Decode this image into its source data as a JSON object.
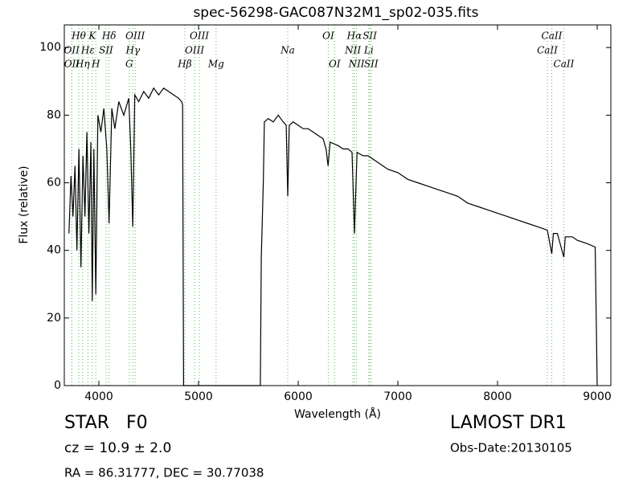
{
  "chart_data": {
    "type": "line",
    "title": "spec-56298-GAC087N32M1_sp02-035.fits",
    "x_label": "Wavelength (Å)",
    "y_label": "Flux (relative)",
    "xlim": [
      3653,
      9137
    ],
    "ylim": [
      0,
      106.7
    ],
    "xticks": [
      4000,
      5000,
      6000,
      7000,
      8000,
      9000
    ],
    "yticks": [
      0,
      20,
      40,
      60,
      80,
      100
    ],
    "color": "#000000",
    "line_color": "#5cb85c",
    "x": [
      3700,
      3720,
      3740,
      3760,
      3780,
      3800,
      3820,
      3840,
      3860,
      3880,
      3900,
      3920,
      3934,
      3950,
      3969,
      3990,
      4020,
      4050,
      4080,
      4102,
      4130,
      4160,
      4200,
      4250,
      4300,
      4320,
      4340,
      4360,
      4400,
      4450,
      4500,
      4550,
      4600,
      4650,
      4700,
      4750,
      4800,
      4830,
      4840,
      4850,
      5620,
      5630,
      5650,
      5660,
      5700,
      5750,
      5800,
      5850,
      5880,
      5895,
      5910,
      5950,
      6000,
      6050,
      6100,
      6150,
      6200,
      6250,
      6280,
      6300,
      6320,
      6400,
      6450,
      6500,
      6540,
      6564,
      6590,
      6650,
      6700,
      6800,
      6900,
      7000,
      7100,
      7200,
      7300,
      7400,
      7500,
      7600,
      7700,
      7800,
      7900,
      8000,
      8100,
      8200,
      8300,
      8400,
      8500,
      8544,
      8560,
      8600,
      8665,
      8680,
      8750,
      8800,
      8900,
      8980,
      8990,
      9000
    ],
    "values": [
      45,
      62,
      50,
      65,
      40,
      70,
      35,
      68,
      50,
      75,
      45,
      72,
      25,
      70,
      27,
      80,
      75,
      82,
      70,
      48,
      82,
      76,
      84,
      80,
      85,
      70,
      47,
      86,
      84,
      87,
      85,
      88,
      86,
      88,
      87,
      86,
      85,
      84,
      83,
      0,
      0,
      38,
      60,
      78,
      79,
      78,
      80,
      78,
      77,
      56,
      77,
      78,
      77,
      76,
      76,
      75,
      74,
      73,
      70,
      65,
      72,
      71,
      70,
      70,
      69,
      45,
      69,
      68,
      68,
      66,
      64,
      63,
      61,
      60,
      59,
      58,
      57,
      56,
      54,
      53,
      52,
      51,
      50,
      49,
      48,
      47,
      46,
      39,
      45,
      45,
      38,
      44,
      44,
      43,
      42,
      41,
      20,
      0
    ],
    "lines": [
      {
        "label": "OII",
        "wavelength": 3727
      },
      {
        "label": "OII",
        "wavelength": 3729
      },
      {
        "label": "Hθ",
        "wavelength": 3798
      },
      {
        "label": "Hη",
        "wavelength": 3836
      },
      {
        "label": "K",
        "wavelength": 3934
      },
      {
        "label": "Hε",
        "wavelength": 3890
      },
      {
        "label": "H",
        "wavelength": 3969
      },
      {
        "label": "SII",
        "wavelength": 4072
      },
      {
        "label": "Hδ",
        "wavelength": 4102
      },
      {
        "label": "G",
        "wavelength": 4305
      },
      {
        "label": "Hγ",
        "wavelength": 4341
      },
      {
        "label": "OIII",
        "wavelength": 4364
      },
      {
        "label": "Hβ",
        "wavelength": 4862
      },
      {
        "label": "OIII",
        "wavelength": 4960
      },
      {
        "label": "OIII",
        "wavelength": 5008
      },
      {
        "label": "Mg",
        "wavelength": 5176
      },
      {
        "label": "Na",
        "wavelength": 5895
      },
      {
        "label": "OI",
        "wavelength": 6302
      },
      {
        "label": "OI",
        "wavelength": 6365
      },
      {
        "label": "NII",
        "wavelength": 6549
      },
      {
        "label": "Hα",
        "wavelength": 6564
      },
      {
        "label": "NII",
        "wavelength": 6585
      },
      {
        "label": "Li",
        "wavelength": 6708
      },
      {
        "label": "SII",
        "wavelength": 6718
      },
      {
        "label": "SII",
        "wavelength": 6732
      },
      {
        "label": "CaII",
        "wavelength": 8500
      },
      {
        "label": "CaII",
        "wavelength": 8544
      },
      {
        "label": "CaII",
        "wavelength": 8665
      }
    ],
    "annotations": {
      "class": "STAR   F0",
      "redshift": "cz = 10.9 ± 2.0",
      "coords": "RA = 86.31777, DEC = 30.77038",
      "survey": "LAMOST DR1",
      "obs_date": "Obs-Date:20130105"
    }
  }
}
